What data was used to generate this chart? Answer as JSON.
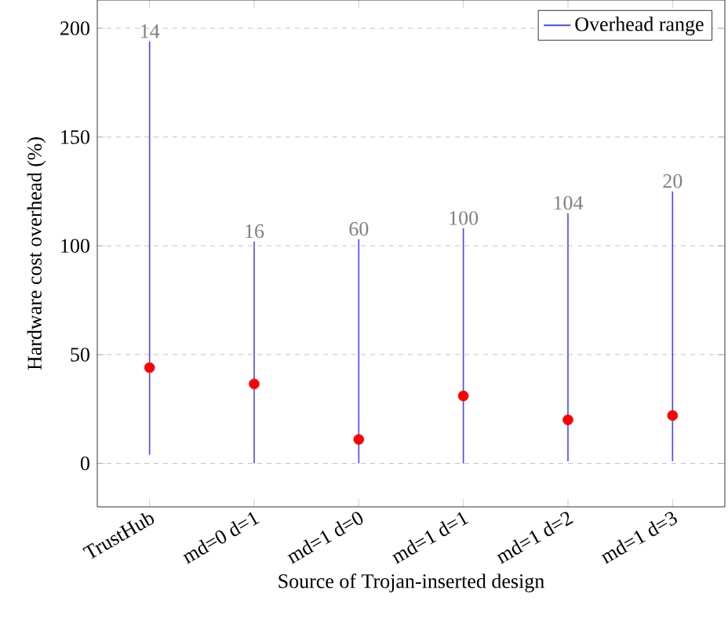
{
  "chart_data": {
    "type": "bar",
    "xlabel": "Source of Trojan-inserted design",
    "ylabel": "Hardware cost overhead (%)",
    "categories": [
      "TrustHub",
      "md=0 d=1",
      "md=1 d=0",
      "md=1 d=1",
      "md=1 d=2",
      "md=1 d=3"
    ],
    "series": [
      {
        "name": "Overhead range",
        "color": "#4646ff",
        "base": [
          4,
          0,
          0,
          0,
          1,
          1
        ],
        "values": [
          190,
          102,
          103,
          108,
          114,
          124
        ]
      },
      {
        "type": "scatter",
        "color": "#ff0000",
        "x": [
          "TrustHub",
          "md=0 d=1",
          "md=1 d=0",
          "md=1 d=1",
          "md=1 d=2",
          "md=1 d=3"
        ],
        "values": [
          44,
          36.5,
          11,
          31,
          20,
          22
        ]
      }
    ],
    "ylim": [
      -20,
      213
    ],
    "yticks": [
      0,
      50,
      100,
      150,
      200
    ],
    "grid": "y",
    "marker": "circle",
    "legend": "top right",
    "annotations": [
      {
        "text": "14",
        "x": "TrustHub",
        "y": 194
      },
      {
        "text": "16",
        "x": "md=0 d=1",
        "y": 102
      },
      {
        "text": "60",
        "x": "md=1 d=0",
        "y": 103
      },
      {
        "text": "100",
        "x": "md=1 d=1",
        "y": 108
      },
      {
        "text": "104",
        "x": "md=1 d=2",
        "y": 115
      },
      {
        "text": "20",
        "x": "md=1 d=3",
        "y": 125
      }
    ]
  }
}
